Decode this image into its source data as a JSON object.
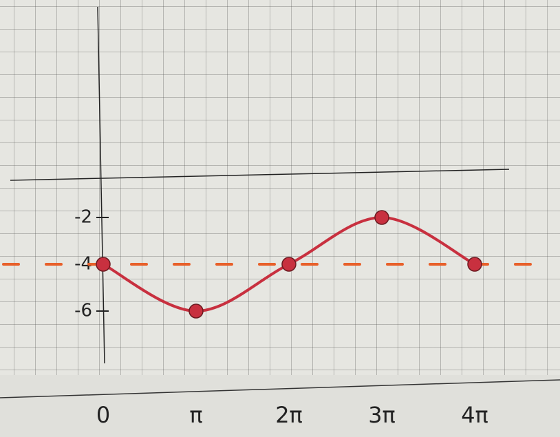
{
  "chart_data": {
    "type": "line",
    "categories": [
      "0",
      "π",
      "2π",
      "3π",
      "4π"
    ],
    "values": [
      -4,
      -6,
      -4,
      -2,
      -4
    ],
    "color": "#c8303f",
    "midline": -4,
    "midline_color": "#e8602a",
    "ylim": [
      -8,
      7
    ],
    "yticks": [
      -6,
      -4,
      -2
    ]
  }
}
